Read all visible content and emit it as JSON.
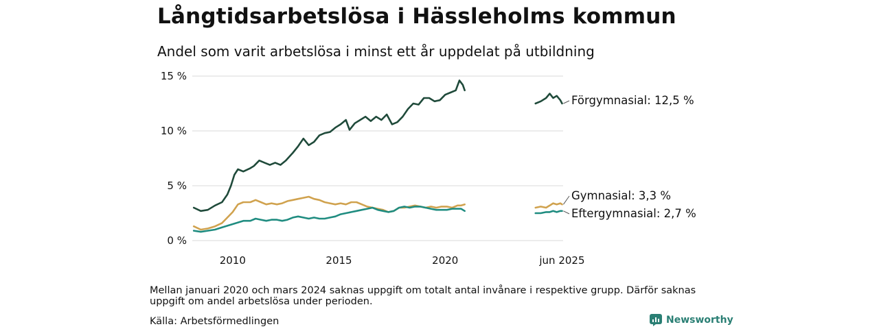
{
  "header": {
    "title": "Långtidsarbetslösa i Hässleholms kommun",
    "subtitle": "Andel som varit arbetslösa i minst ett år uppdelat på utbildning"
  },
  "footer": {
    "note": "Mellan januari 2020 och mars 2024 saknas uppgift om totalt antal invånare i respektive grupp. Därför saknas uppgift om andel arbetslösa under perioden.",
    "source": "Källa: Arbetsförmedlingen",
    "brand": "Newsworthy"
  },
  "colors": {
    "forgymnasial": "#1f4a3a",
    "gymnasial": "#d0a24e",
    "eftergymnasial": "#1f8c80",
    "grid": "#d9d9d9",
    "brand": "#2a7f74"
  },
  "chart_data": {
    "type": "line",
    "title": "Långtidsarbetslösa i Hässleholms kommun",
    "subtitle": "Andel som varit arbetslösa i minst ett år uppdelat på utbildning",
    "ylim": [
      0,
      15
    ],
    "y_ticks": [
      0,
      5,
      10,
      15
    ],
    "y_tick_labels": [
      "0 %",
      "5 %",
      "10 %",
      "15 %"
    ],
    "x_ticks": [
      2010,
      2015,
      2020,
      2025.5
    ],
    "x_tick_labels": [
      "2010",
      "2015",
      "2020",
      "jun 2025"
    ],
    "grid": "horizontal",
    "series": [
      {
        "name": "Förgymnasial",
        "end_label": "Förgymnasial: 12,5 %",
        "color": "#1f4a3a",
        "segments": [
          [
            [
              2008.17,
              3.0
            ],
            [
              2008.5,
              2.7
            ],
            [
              2008.83,
              2.8
            ],
            [
              2009.17,
              3.2
            ],
            [
              2009.5,
              3.5
            ],
            [
              2009.75,
              4.2
            ],
            [
              2009.92,
              5.0
            ],
            [
              2010.08,
              6.0
            ],
            [
              2010.25,
              6.5
            ],
            [
              2010.5,
              6.3
            ],
            [
              2010.83,
              6.6
            ],
            [
              2011.0,
              6.8
            ],
            [
              2011.25,
              7.3
            ],
            [
              2011.5,
              7.1
            ],
            [
              2011.75,
              6.9
            ],
            [
              2012.0,
              7.1
            ],
            [
              2012.25,
              6.9
            ],
            [
              2012.5,
              7.3
            ],
            [
              2012.83,
              8.0
            ],
            [
              2013.08,
              8.6
            ],
            [
              2013.33,
              9.3
            ],
            [
              2013.58,
              8.7
            ],
            [
              2013.83,
              9.0
            ],
            [
              2014.08,
              9.6
            ],
            [
              2014.33,
              9.8
            ],
            [
              2014.58,
              9.9
            ],
            [
              2014.83,
              10.3
            ],
            [
              2015.08,
              10.6
            ],
            [
              2015.33,
              11.0
            ],
            [
              2015.5,
              10.1
            ],
            [
              2015.75,
              10.7
            ],
            [
              2016.0,
              11.0
            ],
            [
              2016.25,
              11.3
            ],
            [
              2016.5,
              10.9
            ],
            [
              2016.75,
              11.3
            ],
            [
              2017.0,
              11.0
            ],
            [
              2017.25,
              11.5
            ],
            [
              2017.5,
              10.6
            ],
            [
              2017.75,
              10.8
            ],
            [
              2018.0,
              11.3
            ],
            [
              2018.25,
              12.0
            ],
            [
              2018.5,
              12.5
            ],
            [
              2018.75,
              12.4
            ],
            [
              2019.0,
              13.0
            ],
            [
              2019.25,
              13.0
            ],
            [
              2019.5,
              12.7
            ],
            [
              2019.75,
              12.8
            ],
            [
              2020.0,
              13.3
            ],
            [
              2020.25,
              13.5
            ],
            [
              2020.5,
              13.7
            ],
            [
              2020.67,
              14.6
            ],
            [
              2020.83,
              14.2
            ],
            [
              2020.92,
              13.7
            ]
          ],
          [
            [
              2024.25,
              12.5
            ],
            [
              2024.5,
              12.7
            ],
            [
              2024.75,
              13.0
            ],
            [
              2024.92,
              13.4
            ],
            [
              2025.08,
              13.0
            ],
            [
              2025.25,
              13.2
            ],
            [
              2025.42,
              12.8
            ],
            [
              2025.5,
              12.5
            ]
          ]
        ]
      },
      {
        "name": "Gymnasial",
        "end_label": "Gymnasial:  3,3 %",
        "color": "#d0a24e",
        "segments": [
          [
            [
              2008.17,
              1.3
            ],
            [
              2008.5,
              1.0
            ],
            [
              2008.83,
              1.1
            ],
            [
              2009.17,
              1.3
            ],
            [
              2009.5,
              1.6
            ],
            [
              2009.75,
              2.1
            ],
            [
              2010.0,
              2.6
            ],
            [
              2010.25,
              3.3
            ],
            [
              2010.5,
              3.5
            ],
            [
              2010.83,
              3.5
            ],
            [
              2011.08,
              3.7
            ],
            [
              2011.33,
              3.5
            ],
            [
              2011.58,
              3.3
            ],
            [
              2011.83,
              3.4
            ],
            [
              2012.08,
              3.3
            ],
            [
              2012.33,
              3.4
            ],
            [
              2012.58,
              3.6
            ],
            [
              2012.83,
              3.7
            ],
            [
              2013.08,
              3.8
            ],
            [
              2013.33,
              3.9
            ],
            [
              2013.58,
              4.0
            ],
            [
              2013.83,
              3.8
            ],
            [
              2014.08,
              3.7
            ],
            [
              2014.33,
              3.5
            ],
            [
              2014.58,
              3.4
            ],
            [
              2014.83,
              3.3
            ],
            [
              2015.08,
              3.4
            ],
            [
              2015.33,
              3.3
            ],
            [
              2015.58,
              3.5
            ],
            [
              2015.83,
              3.5
            ],
            [
              2016.08,
              3.3
            ],
            [
              2016.33,
              3.1
            ],
            [
              2016.58,
              3.0
            ],
            [
              2016.83,
              2.9
            ],
            [
              2017.08,
              2.8
            ],
            [
              2017.33,
              2.6
            ],
            [
              2017.58,
              2.7
            ],
            [
              2017.83,
              3.0
            ],
            [
              2018.08,
              3.0
            ],
            [
              2018.33,
              3.1
            ],
            [
              2018.58,
              3.2
            ],
            [
              2018.83,
              3.1
            ],
            [
              2019.08,
              3.0
            ],
            [
              2019.33,
              3.1
            ],
            [
              2019.58,
              3.0
            ],
            [
              2019.83,
              3.1
            ],
            [
              2020.08,
              3.1
            ],
            [
              2020.33,
              3.0
            ],
            [
              2020.58,
              3.2
            ],
            [
              2020.75,
              3.2
            ],
            [
              2020.92,
              3.3
            ]
          ],
          [
            [
              2024.25,
              3.0
            ],
            [
              2024.5,
              3.1
            ],
            [
              2024.75,
              3.0
            ],
            [
              2024.92,
              3.2
            ],
            [
              2025.08,
              3.4
            ],
            [
              2025.25,
              3.3
            ],
            [
              2025.42,
              3.4
            ],
            [
              2025.5,
              3.3
            ]
          ]
        ]
      },
      {
        "name": "Eftergymnasial",
        "end_label": "Eftergymnasial:  2,7 %",
        "color": "#1f8c80",
        "segments": [
          [
            [
              2008.17,
              0.9
            ],
            [
              2008.5,
              0.8
            ],
            [
              2008.83,
              0.9
            ],
            [
              2009.17,
              1.0
            ],
            [
              2009.5,
              1.2
            ],
            [
              2009.83,
              1.4
            ],
            [
              2010.17,
              1.6
            ],
            [
              2010.5,
              1.8
            ],
            [
              2010.83,
              1.8
            ],
            [
              2011.08,
              2.0
            ],
            [
              2011.33,
              1.9
            ],
            [
              2011.58,
              1.8
            ],
            [
              2011.83,
              1.9
            ],
            [
              2012.08,
              1.9
            ],
            [
              2012.33,
              1.8
            ],
            [
              2012.58,
              1.9
            ],
            [
              2012.83,
              2.1
            ],
            [
              2013.08,
              2.2
            ],
            [
              2013.33,
              2.1
            ],
            [
              2013.58,
              2.0
            ],
            [
              2013.83,
              2.1
            ],
            [
              2014.08,
              2.0
            ],
            [
              2014.33,
              2.0
            ],
            [
              2014.58,
              2.1
            ],
            [
              2014.83,
              2.2
            ],
            [
              2015.08,
              2.4
            ],
            [
              2015.33,
              2.5
            ],
            [
              2015.58,
              2.6
            ],
            [
              2015.83,
              2.7
            ],
            [
              2016.08,
              2.8
            ],
            [
              2016.33,
              2.9
            ],
            [
              2016.58,
              3.0
            ],
            [
              2016.83,
              2.8
            ],
            [
              2017.08,
              2.7
            ],
            [
              2017.33,
              2.6
            ],
            [
              2017.58,
              2.7
            ],
            [
              2017.83,
              3.0
            ],
            [
              2018.08,
              3.1
            ],
            [
              2018.33,
              3.0
            ],
            [
              2018.58,
              3.1
            ],
            [
              2018.83,
              3.1
            ],
            [
              2019.08,
              3.0
            ],
            [
              2019.33,
              2.9
            ],
            [
              2019.58,
              2.8
            ],
            [
              2019.83,
              2.8
            ],
            [
              2020.08,
              2.8
            ],
            [
              2020.33,
              2.9
            ],
            [
              2020.58,
              2.9
            ],
            [
              2020.75,
              2.9
            ],
            [
              2020.92,
              2.7
            ]
          ],
          [
            [
              2024.25,
              2.5
            ],
            [
              2024.5,
              2.5
            ],
            [
              2024.75,
              2.6
            ],
            [
              2024.92,
              2.6
            ],
            [
              2025.08,
              2.7
            ],
            [
              2025.25,
              2.6
            ],
            [
              2025.42,
              2.7
            ],
            [
              2025.5,
              2.7
            ]
          ]
        ]
      }
    ]
  }
}
